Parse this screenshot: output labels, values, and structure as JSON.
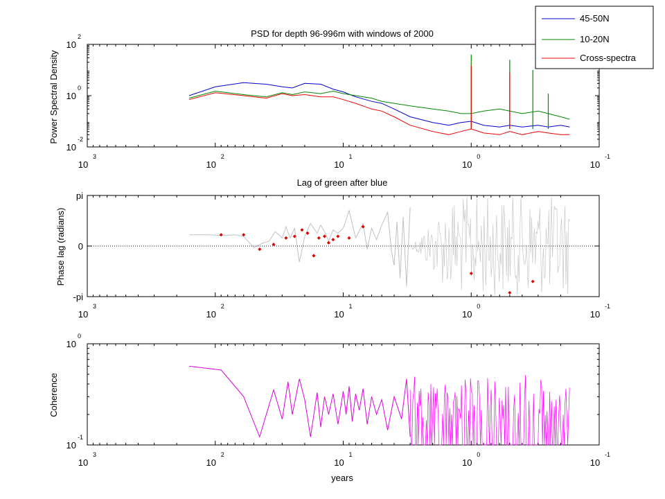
{
  "chart_data": [
    {
      "type": "line",
      "title": "PSD for depth 96-996m with windows of 2000",
      "ylabel": "Power Spectral Density",
      "xlabel": "",
      "xscale": "log-reversed",
      "yscale": "log",
      "xlim": [
        1000,
        0.1
      ],
      "ylim": [
        0.01,
        100
      ],
      "grid": false,
      "xticks": [
        {
          "value": 1000,
          "base": "10",
          "exp": "3"
        },
        {
          "value": 100,
          "base": "10",
          "exp": "2"
        },
        {
          "value": 10,
          "base": "10",
          "exp": "1"
        },
        {
          "value": 1,
          "base": "10",
          "exp": "0"
        },
        {
          "value": 0.1,
          "base": "10",
          "exp": "-1"
        }
      ],
      "yticks": [
        {
          "value": 0.01,
          "base": "10",
          "exp": "-2"
        },
        {
          "value": 1,
          "base": "10",
          "exp": "0"
        },
        {
          "value": 100,
          "base": "10",
          "exp": "2"
        }
      ],
      "legend": {
        "placement": "top-right",
        "entries": [
          {
            "name": "45-50N",
            "color": "#0000cc"
          },
          {
            "name": "10-20N",
            "color": "#008800"
          },
          {
            "name": "Cross-spectra",
            "color": "#ee0000"
          }
        ]
      },
      "series": [
        {
          "name": "45-50N",
          "color": "#0000cc",
          "x": [
            160,
            100,
            60,
            40,
            30,
            25,
            20,
            15,
            12,
            10,
            8,
            6,
            5,
            4,
            3,
            2,
            1.5,
            1.2,
            1.0,
            0.8,
            0.6,
            0.5,
            0.4,
            0.3,
            0.25,
            0.2,
            0.17
          ],
          "y": [
            1.0,
            2.2,
            3.2,
            2.8,
            2.2,
            2.0,
            3.0,
            2.8,
            1.8,
            1.4,
            0.9,
            0.6,
            0.5,
            0.3,
            0.15,
            0.09,
            0.07,
            0.09,
            0.1,
            0.07,
            0.06,
            0.07,
            0.06,
            0.07,
            0.06,
            0.07,
            0.06
          ]
        },
        {
          "name": "10-20N",
          "color": "#008800",
          "x": [
            160,
            100,
            60,
            40,
            30,
            25,
            20,
            15,
            12,
            10,
            8,
            6,
            5,
            4,
            3,
            2,
            1.5,
            1.2,
            1.0,
            0.8,
            0.6,
            0.5,
            0.4,
            0.3,
            0.25,
            0.2,
            0.17
          ],
          "y": [
            0.8,
            1.5,
            1.1,
            0.9,
            1.3,
            1.1,
            1.4,
            1.2,
            1.5,
            1.2,
            1.0,
            0.8,
            0.6,
            0.5,
            0.4,
            0.3,
            0.25,
            0.2,
            0.2,
            0.25,
            0.3,
            0.25,
            0.2,
            0.25,
            0.2,
            0.15,
            0.12
          ]
        },
        {
          "name": "Cross-spectra",
          "color": "#ee0000",
          "x": [
            160,
            100,
            60,
            40,
            30,
            25,
            20,
            15,
            12,
            10,
            8,
            6,
            5,
            4,
            3,
            2,
            1.5,
            1.2,
            1.0,
            0.8,
            0.6,
            0.5,
            0.4,
            0.3,
            0.25,
            0.2,
            0.17
          ],
          "y": [
            0.7,
            1.3,
            1.0,
            0.8,
            1.2,
            1.0,
            1.1,
            0.9,
            0.9,
            0.7,
            0.5,
            0.3,
            0.25,
            0.15,
            0.07,
            0.04,
            0.03,
            0.04,
            0.05,
            0.035,
            0.03,
            0.04,
            0.03,
            0.04,
            0.035,
            0.03,
            0.03
          ]
        }
      ],
      "spikes": [
        {
          "x": 1.0,
          "y": 40,
          "color": "#008800"
        },
        {
          "x": 1.0,
          "y": 15,
          "color": "#ee0000"
        },
        {
          "x": 0.5,
          "y": 25,
          "color": "#008800"
        },
        {
          "x": 0.5,
          "y": 8,
          "color": "#ee0000"
        },
        {
          "x": 0.33,
          "y": 10,
          "color": "#008800"
        },
        {
          "x": 0.25,
          "y": 1.2,
          "color": "#008800"
        }
      ]
    },
    {
      "type": "line",
      "title": "Lag of green after blue",
      "ylabel": "Phase lag (radians)",
      "xlabel": "",
      "xscale": "log-reversed",
      "xlim": [
        1000,
        0.1
      ],
      "ylim": [
        -3.1416,
        3.1416
      ],
      "zero_line": "dotted",
      "xticks": [
        {
          "value": 1000,
          "base": "10",
          "exp": "3"
        },
        {
          "value": 100,
          "base": "10",
          "exp": "2"
        },
        {
          "value": 10,
          "base": "10",
          "exp": "1"
        },
        {
          "value": 1,
          "base": "10",
          "exp": "0"
        },
        {
          "value": 0.1,
          "base": "10",
          "exp": "-1"
        }
      ],
      "yticks": [
        {
          "value": 3.1416,
          "label": "pi"
        },
        {
          "value": 0,
          "label": "0"
        },
        {
          "value": -3.1416,
          "label": "-pi"
        }
      ],
      "series": [
        {
          "color": "#c0c0c0",
          "x": [
            160,
            110,
            90,
            70,
            60,
            50,
            42,
            38,
            34,
            30,
            28,
            26,
            24,
            22,
            20,
            18,
            16,
            15,
            14,
            13,
            12,
            11,
            10,
            9,
            8,
            7,
            6.5,
            6,
            5.5,
            5,
            4.5,
            4.2,
            4,
            3.8,
            3.6,
            3.4,
            3.2,
            3
          ],
          "y": [
            0.7,
            0.7,
            0.65,
            0.7,
            0.6,
            -0.1,
            0.2,
            0.3,
            0.9,
            0.5,
            1.2,
            0.5,
            1.1,
            -1.0,
            0.6,
            1.4,
            0.8,
            1.3,
            0.9,
            0.3,
            1.0,
            0.8,
            1.1,
            2.2,
            0.5,
            1.4,
            -0.2,
            1.1,
            0.4,
            1.3,
            2.1,
            -0.3,
            -1.2,
            1.5,
            -2.0,
            1.8,
            -2.5,
            2.4
          ]
        }
      ],
      "noise_band": {
        "x_from": 3.0,
        "x_to": 0.17,
        "color": "#c8c8c8"
      },
      "points": {
        "color": "#dd0000",
        "x": [
          90,
          60,
          45,
          35,
          28,
          24,
          21,
          19,
          17,
          15.5,
          14,
          13,
          12,
          11,
          9,
          7,
          1.0,
          0.5,
          0.33
        ],
        "y": [
          0.7,
          0.7,
          -0.2,
          0.1,
          0.5,
          0.6,
          1.0,
          0.8,
          -0.6,
          0.5,
          0.6,
          0.2,
          0.4,
          0.6,
          0.5,
          1.2,
          -1.7,
          -2.9,
          -2.2
        ]
      }
    },
    {
      "type": "line",
      "title": "",
      "ylabel": "Coherence",
      "xlabel": "years",
      "xscale": "log-reversed",
      "yscale": "log",
      "xlim": [
        1000,
        0.1
      ],
      "ylim": [
        0.1,
        1
      ],
      "xticks": [
        {
          "value": 1000,
          "base": "10",
          "exp": "3"
        },
        {
          "value": 100,
          "base": "10",
          "exp": "2"
        },
        {
          "value": 10,
          "base": "10",
          "exp": "1"
        },
        {
          "value": 1,
          "base": "10",
          "exp": "0"
        },
        {
          "value": 0.1,
          "base": "10",
          "exp": "-1"
        }
      ],
      "yticks": [
        {
          "value": 0.1,
          "base": "10",
          "exp": "-1"
        },
        {
          "value": 1,
          "base": "10",
          "exp": "0"
        }
      ],
      "series": [
        {
          "color": "#dd00dd",
          "x": [
            160,
            90,
            60,
            45,
            35,
            30,
            27,
            25,
            22,
            20,
            18,
            16,
            15,
            14,
            13,
            12,
            11,
            10,
            9.5,
            9,
            8.5,
            8,
            7.5,
            7,
            6.5,
            6,
            5.5,
            5,
            4.5,
            4,
            3.5,
            3.2,
            3
          ],
          "y": [
            0.6,
            0.55,
            0.3,
            0.12,
            0.35,
            0.18,
            0.42,
            0.2,
            0.45,
            0.28,
            0.12,
            0.33,
            0.15,
            0.3,
            0.2,
            0.32,
            0.16,
            0.34,
            0.2,
            0.38,
            0.17,
            0.32,
            0.22,
            0.36,
            0.16,
            0.3,
            0.2,
            0.28,
            0.14,
            0.3,
            0.18,
            0.45,
            0.12
          ]
        }
      ],
      "noise_band": {
        "x_from": 3.0,
        "x_to": 0.17,
        "color": "#ff00ff"
      }
    }
  ]
}
